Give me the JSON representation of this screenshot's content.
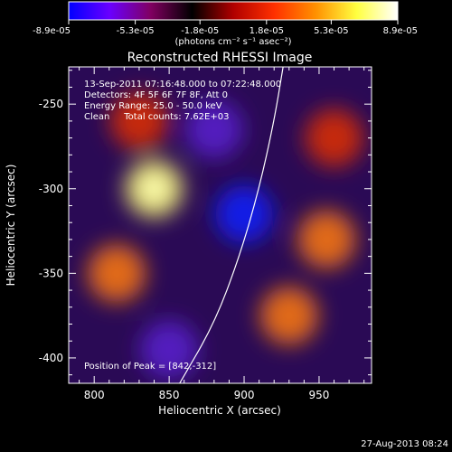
{
  "chart_data": {
    "type": "heatmap",
    "title": "Reconstructed RHESSI Image",
    "xlabel": "Heliocentric X (arcsec)",
    "ylabel": "Heliocentric Y (arcsec)",
    "xlim": [
      783,
      985
    ],
    "ylim": [
      -415,
      -228
    ],
    "x_ticks": [
      "800",
      "850",
      "900",
      "950"
    ],
    "x_tick_values": [
      800,
      850,
      900,
      950
    ],
    "y_ticks": [
      "-250",
      "-300",
      "-350",
      "-400"
    ],
    "y_tick_values": [
      -250,
      -300,
      -350,
      -400
    ],
    "colorbar": {
      "min": -8.9e-05,
      "max": 8.9e-05,
      "tick_labels": [
        "-8.9e-05",
        "-5.3e-05",
        "-1.8e-05",
        "1.8e-05",
        "5.3e-05",
        "8.9e-05"
      ],
      "tick_values": [
        -8.9e-05,
        -5.3e-05,
        -1.8e-05,
        1.8e-05,
        5.3e-05,
        8.9e-05
      ],
      "units_label": "(photons cm⁻² s⁻¹ asec⁻²)",
      "colors": [
        "#0000ff",
        "#6a00ff",
        "#800060",
        "#000000",
        "#b00000",
        "#ff3000",
        "#ff9000",
        "#ffff40",
        "#ffffff"
      ]
    },
    "annotations": {
      "time_range": "13-Sep-2011 07:16:48.000 to 07:22:48.000",
      "detectors": "Detectors: 4F 5F 6F 7F 8F, Att 0",
      "energy_range": "Energy Range: 25.0 - 50.0 keV",
      "clean_counts": "Clean     Total counts: 7.62E+03",
      "peak": "Position of Peak = [842,-312]"
    },
    "limb_curve": {
      "points": [
        [
          857,
          -415
        ],
        [
          880,
          -380
        ],
        [
          897,
          -340
        ],
        [
          910,
          -300
        ],
        [
          920,
          -260
        ],
        [
          926,
          -228
        ]
      ]
    },
    "sources": [
      {
        "x": 840,
        "y": -300,
        "level": 0.95
      },
      {
        "x": 955,
        "y": -330,
        "level": 0.85
      },
      {
        "x": 815,
        "y": -350,
        "level": 0.75
      },
      {
        "x": 830,
        "y": -260,
        "level": 0.7
      },
      {
        "x": 930,
        "y": -375,
        "level": 0.75
      },
      {
        "x": 960,
        "y": -270,
        "level": 0.6
      },
      {
        "x": 900,
        "y": -315,
        "level": -0.9
      },
      {
        "x": 880,
        "y": -265,
        "level": -0.55
      },
      {
        "x": 850,
        "y": -395,
        "level": -0.5
      }
    ]
  },
  "footer": {
    "timestamp": "27-Aug-2013 08:24"
  }
}
